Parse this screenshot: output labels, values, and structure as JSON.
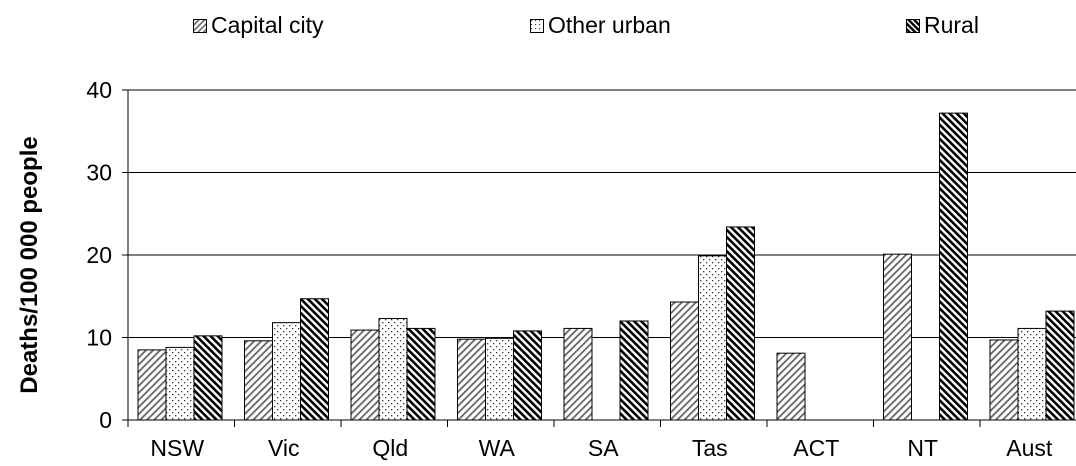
{
  "chart_data": {
    "type": "bar",
    "title": "",
    "xlabel": "",
    "ylabel": "Deaths/100 000 people",
    "ylim": [
      0,
      40
    ],
    "yticks": [
      0,
      10,
      20,
      30,
      40
    ],
    "grid": true,
    "legend_position": "top",
    "categories": [
      "NSW",
      "Vic",
      "Qld",
      "WA",
      "SA",
      "Tas",
      "ACT",
      "NT",
      "Aust"
    ],
    "series": [
      {
        "name": "Capital city",
        "pattern": "diagonal-light",
        "values": [
          8.5,
          9.6,
          10.9,
          9.8,
          11.1,
          14.3,
          8.1,
          20.1,
          9.7
        ]
      },
      {
        "name": "Other urban",
        "pattern": "dots",
        "values": [
          8.8,
          11.8,
          12.3,
          9.9,
          null,
          19.9,
          null,
          null,
          11.1
        ]
      },
      {
        "name": "Rural",
        "pattern": "diagonal-dark",
        "values": [
          10.2,
          14.7,
          11.1,
          10.8,
          12.0,
          23.4,
          null,
          37.2,
          13.2
        ]
      }
    ]
  }
}
